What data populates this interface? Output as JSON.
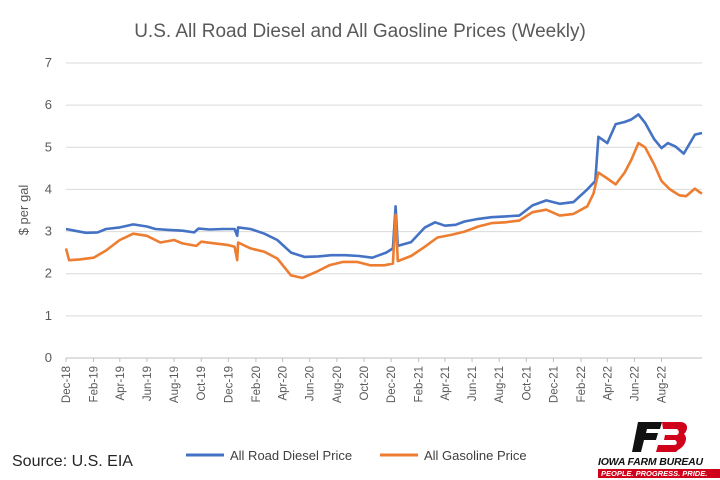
{
  "chart_data": {
    "type": "line",
    "title": "U.S. All Road Diesel and All Gaosline Prices (Weekly)",
    "ylabel": "$ per gal",
    "xlabel": "",
    "ylim": [
      0,
      7
    ],
    "yticks": [
      0,
      1,
      2,
      3,
      4,
      5,
      6,
      7
    ],
    "xlim": [
      "2018-12-01",
      "2022-10-31"
    ],
    "xticks": [
      "Dec-18",
      "Feb-19",
      "Apr-19",
      "Jun-19",
      "Aug-19",
      "Oct-19",
      "Dec-19",
      "Feb-20",
      "Apr-20",
      "Jun-20",
      "Aug-20",
      "Oct-20",
      "Dec-20",
      "Feb-21",
      "Apr-21",
      "Jun-21",
      "Aug-21",
      "Oct-21",
      "Dec-21",
      "Feb-22",
      "Apr-22",
      "Jun-22",
      "Aug-22"
    ],
    "grid": true,
    "legend": "bottom",
    "series": [
      {
        "name": "All Road Diesel Price",
        "color": "#4472C4",
        "points": [
          [
            "2018-12-01",
            3.06
          ],
          [
            "2018-12-20",
            3.02
          ],
          [
            "2019-01-15",
            2.97
          ],
          [
            "2019-02-10",
            2.98
          ],
          [
            "2019-03-01",
            3.06
          ],
          [
            "2019-04-01",
            3.1
          ],
          [
            "2019-05-01",
            3.17
          ],
          [
            "2019-06-01",
            3.12
          ],
          [
            "2019-06-20",
            3.06
          ],
          [
            "2019-07-20",
            3.04
          ],
          [
            "2019-08-20",
            3.02
          ],
          [
            "2019-09-15",
            2.98
          ],
          [
            "2019-09-25",
            3.07
          ],
          [
            "2019-10-20",
            3.05
          ],
          [
            "2019-11-20",
            3.06
          ],
          [
            "2019-12-15",
            3.06
          ],
          [
            "2019-12-21",
            2.9
          ],
          [
            "2019-12-23",
            3.1
          ],
          [
            "2020-01-20",
            3.06
          ],
          [
            "2020-02-20",
            2.95
          ],
          [
            "2020-03-20",
            2.8
          ],
          [
            "2020-04-20",
            2.5
          ],
          [
            "2020-05-20",
            2.4
          ],
          [
            "2020-06-20",
            2.41
          ],
          [
            "2020-07-20",
            2.44
          ],
          [
            "2020-08-20",
            2.44
          ],
          [
            "2020-09-20",
            2.42
          ],
          [
            "2020-10-20",
            2.38
          ],
          [
            "2020-11-20",
            2.5
          ],
          [
            "2020-12-05",
            2.6
          ],
          [
            "2020-12-11",
            3.6
          ],
          [
            "2020-12-16",
            2.66
          ],
          [
            "2021-01-15",
            2.75
          ],
          [
            "2021-02-15",
            3.1
          ],
          [
            "2021-03-10",
            3.22
          ],
          [
            "2021-04-01",
            3.14
          ],
          [
            "2021-04-25",
            3.16
          ],
          [
            "2021-05-15",
            3.24
          ],
          [
            "2021-06-15",
            3.3
          ],
          [
            "2021-07-15",
            3.34
          ],
          [
            "2021-08-15",
            3.36
          ],
          [
            "2021-09-15",
            3.38
          ],
          [
            "2021-10-15",
            3.62
          ],
          [
            "2021-11-15",
            3.74
          ],
          [
            "2021-12-15",
            3.66
          ],
          [
            "2022-01-15",
            3.7
          ],
          [
            "2022-02-15",
            4.0
          ],
          [
            "2022-03-05",
            4.2
          ],
          [
            "2022-03-12",
            5.25
          ],
          [
            "2022-04-01",
            5.1
          ],
          [
            "2022-04-20",
            5.55
          ],
          [
            "2022-05-10",
            5.6
          ],
          [
            "2022-05-25",
            5.66
          ],
          [
            "2022-06-10",
            5.78
          ],
          [
            "2022-06-25",
            5.58
          ],
          [
            "2022-07-15",
            5.2
          ],
          [
            "2022-08-01",
            4.98
          ],
          [
            "2022-08-15",
            5.1
          ],
          [
            "2022-09-01",
            5.02
          ],
          [
            "2022-09-20",
            4.85
          ],
          [
            "2022-10-15",
            5.3
          ],
          [
            "2022-10-31",
            5.34
          ]
        ]
      },
      {
        "name": "All Gasoline Price",
        "color": "#ED7D31",
        "points": [
          [
            "2018-12-01",
            2.6
          ],
          [
            "2018-12-08",
            2.32
          ],
          [
            "2019-01-01",
            2.34
          ],
          [
            "2019-02-01",
            2.38
          ],
          [
            "2019-03-01",
            2.55
          ],
          [
            "2019-04-01",
            2.8
          ],
          [
            "2019-05-01",
            2.95
          ],
          [
            "2019-06-01",
            2.9
          ],
          [
            "2019-07-01",
            2.74
          ],
          [
            "2019-08-01",
            2.8
          ],
          [
            "2019-08-20",
            2.72
          ],
          [
            "2019-09-20",
            2.66
          ],
          [
            "2019-10-01",
            2.76
          ],
          [
            "2019-11-01",
            2.72
          ],
          [
            "2019-12-01",
            2.68
          ],
          [
            "2019-12-15",
            2.64
          ],
          [
            "2019-12-21",
            2.32
          ],
          [
            "2019-12-23",
            2.74
          ],
          [
            "2020-01-20",
            2.6
          ],
          [
            "2020-02-20",
            2.52
          ],
          [
            "2020-03-20",
            2.36
          ],
          [
            "2020-04-20",
            1.96
          ],
          [
            "2020-05-15",
            1.9
          ],
          [
            "2020-06-15",
            2.04
          ],
          [
            "2020-07-15",
            2.2
          ],
          [
            "2020-08-15",
            2.28
          ],
          [
            "2020-09-15",
            2.28
          ],
          [
            "2020-10-15",
            2.2
          ],
          [
            "2020-11-15",
            2.2
          ],
          [
            "2020-12-05",
            2.24
          ],
          [
            "2020-12-11",
            3.4
          ],
          [
            "2020-12-16",
            2.3
          ],
          [
            "2021-01-15",
            2.42
          ],
          [
            "2021-02-15",
            2.64
          ],
          [
            "2021-03-15",
            2.86
          ],
          [
            "2021-04-15",
            2.92
          ],
          [
            "2021-05-15",
            3.0
          ],
          [
            "2021-06-15",
            3.12
          ],
          [
            "2021-07-15",
            3.2
          ],
          [
            "2021-08-15",
            3.22
          ],
          [
            "2021-09-15",
            3.26
          ],
          [
            "2021-10-15",
            3.46
          ],
          [
            "2021-11-15",
            3.52
          ],
          [
            "2021-12-15",
            3.38
          ],
          [
            "2022-01-15",
            3.42
          ],
          [
            "2022-02-15",
            3.6
          ],
          [
            "2022-03-01",
            3.9
          ],
          [
            "2022-03-12",
            4.4
          ],
          [
            "2022-04-01",
            4.26
          ],
          [
            "2022-04-20",
            4.12
          ],
          [
            "2022-05-10",
            4.4
          ],
          [
            "2022-05-25",
            4.7
          ],
          [
            "2022-06-10",
            5.1
          ],
          [
            "2022-06-25",
            5.0
          ],
          [
            "2022-07-15",
            4.6
          ],
          [
            "2022-08-01",
            4.2
          ],
          [
            "2022-08-20",
            4.0
          ],
          [
            "2022-09-10",
            3.86
          ],
          [
            "2022-09-25",
            3.84
          ],
          [
            "2022-10-15",
            4.02
          ],
          [
            "2022-10-25",
            3.94
          ],
          [
            "2022-10-31",
            3.9
          ]
        ]
      }
    ]
  },
  "footer": {
    "source": "Source: U.S. EIA"
  },
  "logo": {
    "mark": "FB",
    "name": "IOWA FARM BUREAU",
    "tagline": "PEOPLE. PROGRESS. PRIDE.",
    "color": "#D0021B"
  }
}
